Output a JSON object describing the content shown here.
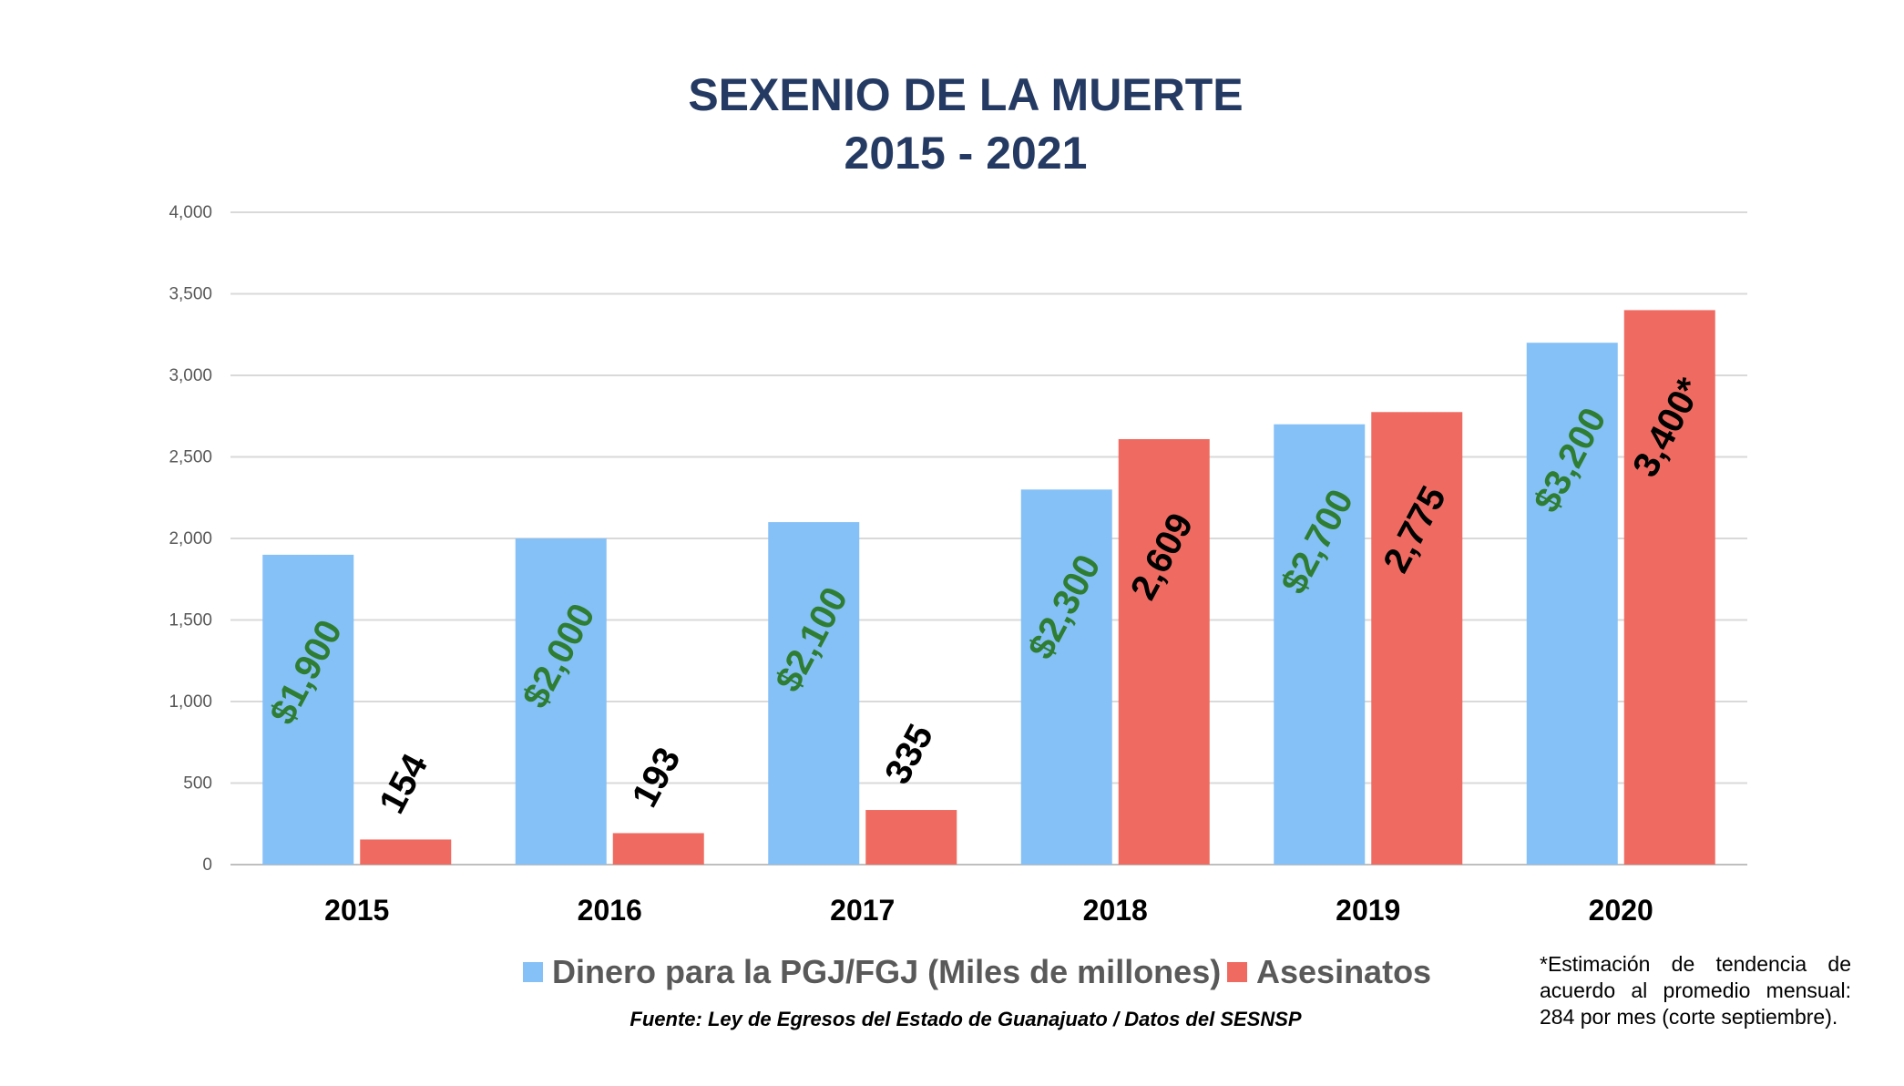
{
  "chart_data": {
    "type": "bar",
    "title_lines": [
      "SEXENIO DE LA MUERTE",
      "2015 - 2021"
    ],
    "categories": [
      "2015",
      "2016",
      "2017",
      "2018",
      "2019",
      "2020"
    ],
    "series": [
      {
        "name": "Dinero para la PGJ/FGJ (Miles de millones)",
        "color": "#85c1f7",
        "label_color": "#2e7d32",
        "values": [
          1900,
          2000,
          2100,
          2300,
          2700,
          3200
        ],
        "labels": [
          "$1,900",
          "$2,000",
          "$2,100",
          "$2,300",
          "$2,700",
          "$3,200"
        ]
      },
      {
        "name": "Asesinatos",
        "color": "#ef6b61",
        "label_color": "#000000",
        "values": [
          154,
          193,
          335,
          2609,
          2775,
          3400
        ],
        "labels": [
          "154",
          "193",
          "335",
          "2,609",
          "2,775",
          "3,400*"
        ]
      }
    ],
    "ylim": [
      0,
      4000
    ],
    "yticks": [
      0,
      500,
      1000,
      1500,
      2000,
      2500,
      3000,
      3500,
      4000
    ],
    "ytick_labels": [
      "0",
      "500",
      "1,000",
      "1,500",
      "2,000",
      "2,500",
      "3,000",
      "3,500",
      "4,000"
    ],
    "grid": true,
    "legend_position": "bottom",
    "xlabel": "",
    "ylabel": ""
  },
  "source_note": "Fuente: Ley de Egresos del Estado de Guanajuato / Datos del SESNSP",
  "footnote": "*Estimación de tendencia de acuerdo al promedio mensual: 284 por mes (corte septiembre)."
}
